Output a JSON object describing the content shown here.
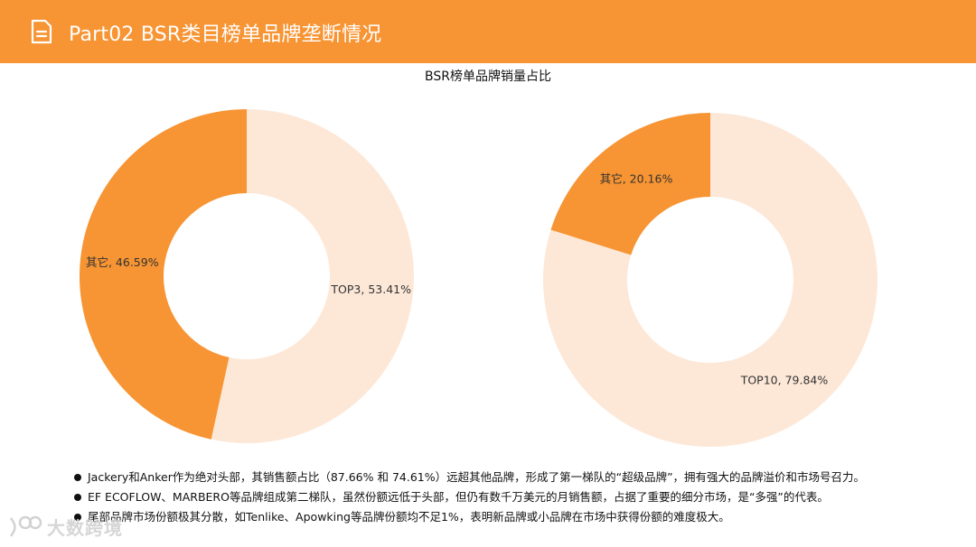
{
  "header": {
    "title": "Part02 BSR类目榜单品牌垄断情况",
    "icon": "document-icon",
    "background": "#f79433"
  },
  "chart_data": [
    {
      "type": "pie",
      "title": "BSR榜单品牌销量占比",
      "donut": true,
      "slices": [
        {
          "label": "TOP3",
          "value": 53.41,
          "display": "TOP3, 53.41%",
          "color": "#fde8d8"
        },
        {
          "label": "其它",
          "value": 46.59,
          "display": "其它, 46.59%",
          "color": "#f79433"
        }
      ]
    },
    {
      "type": "pie",
      "title": "",
      "donut": true,
      "slices": [
        {
          "label": "TOP10",
          "value": 79.84,
          "display": "TOP10, 79.84%",
          "color": "#fde8d8"
        },
        {
          "label": "其它",
          "value": 20.16,
          "display": "其它, 20.16%",
          "color": "#f79433"
        }
      ]
    }
  ],
  "notes": [
    "Jackery和Anker作为绝对头部，其销售额占比（87.66% 和 74.61%）远超其他品牌，形成了第一梯队的“超级品牌”，拥有强大的品牌溢价和市场号召力。",
    "EF ECOFLOW、MARBERO等品牌组成第二梯队，虽然份额远低于头部，但仍有数千万美元的月销售额，占据了重要的细分市场，是“多强”的代表。",
    "尾部品牌市场份额极其分散，如Tenlike、Apowking等品牌份额均不足1%，表明新品牌或小品牌在市场中获得份额的难度极大。"
  ],
  "watermark": {
    "text": "大数跨境",
    "icon": "brand-logo-icon"
  }
}
